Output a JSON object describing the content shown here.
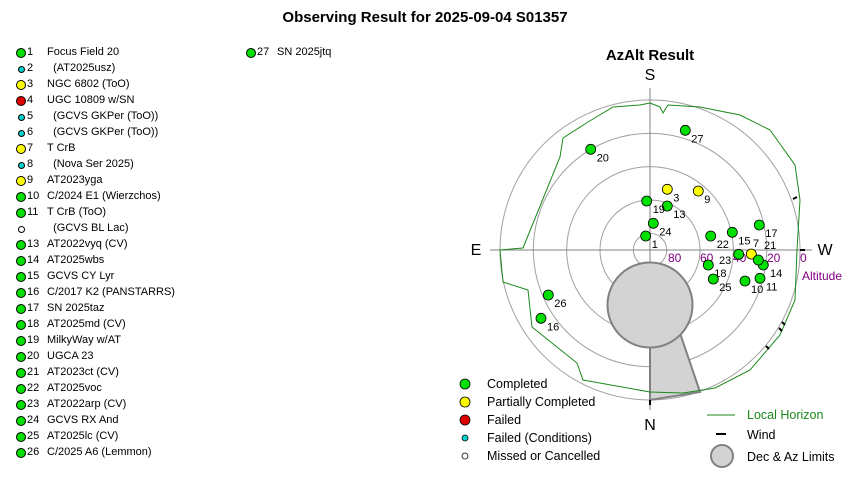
{
  "title": "Observing Result for 2025-09-04 S01357",
  "chart_title": "AzAlt Result",
  "colors": {
    "completed": "#00e000",
    "partial": "#ffff00",
    "failed": "#e00000",
    "failed_conditions": "#00d0d0",
    "missed": "#ffffff",
    "horizon": "#1a8a1a",
    "altitude_label": "#800080",
    "limits": "#d3d3d3"
  },
  "targets": [
    {
      "num": "1",
      "name": "Focus Field 20",
      "status": "completed"
    },
    {
      "num": "2",
      "name": "  (AT2025usz)",
      "status": "failed_conditions"
    },
    {
      "num": "3",
      "name": "NGC 6802 (ToO)",
      "status": "partial"
    },
    {
      "num": "4",
      "name": "UGC 10809 w/SN",
      "status": "failed"
    },
    {
      "num": "5",
      "name": "  (GCVS GKPer (ToO))",
      "status": "failed_conditions"
    },
    {
      "num": "6",
      "name": "  (GCVS GKPer (ToO))",
      "status": "failed_conditions"
    },
    {
      "num": "7",
      "name": "T CrB",
      "status": "partial"
    },
    {
      "num": "8",
      "name": "  (Nova Ser 2025)",
      "status": "failed_conditions"
    },
    {
      "num": "9",
      "name": "AT2023yga",
      "status": "partial"
    },
    {
      "num": "10",
      "name": "C/2024 E1 (Wierzchos)",
      "status": "completed"
    },
    {
      "num": "11",
      "name": "T CrB (ToO)",
      "status": "completed"
    },
    {
      "num": "",
      "name": "  (GCVS BL Lac)",
      "status": "missed"
    },
    {
      "num": "13",
      "name": "AT2022vyq (CV)",
      "status": "completed"
    },
    {
      "num": "14",
      "name": "AT2025wbs",
      "status": "completed"
    },
    {
      "num": "15",
      "name": "GCVS CY Lyr",
      "status": "completed"
    },
    {
      "num": "16",
      "name": "C/2017 K2 (PANSTARRS)",
      "status": "completed"
    },
    {
      "num": "17",
      "name": "SN 2025taz",
      "status": "completed"
    },
    {
      "num": "18",
      "name": "AT2025md (CV)",
      "status": "completed"
    },
    {
      "num": "19",
      "name": "MilkyWay w/AT",
      "status": "completed"
    },
    {
      "num": "20",
      "name": "UGCA 23",
      "status": "completed"
    },
    {
      "num": "21",
      "name": "AT2023ct (CV)",
      "status": "completed"
    },
    {
      "num": "22",
      "name": "AT2025voc",
      "status": "completed"
    },
    {
      "num": "23",
      "name": "AT2022arp (CV)",
      "status": "completed"
    },
    {
      "num": "24",
      "name": "GCVS RX And",
      "status": "completed"
    },
    {
      "num": "25",
      "name": "AT2025lc (CV)",
      "status": "completed"
    },
    {
      "num": "26",
      "name": "C/2025 A6 (Lemmon)",
      "status": "completed"
    },
    {
      "num": "27",
      "name": "SN 2025jtq",
      "status": "completed"
    }
  ],
  "compass": {
    "S": "S",
    "E": "E",
    "W": "W",
    "N": "N"
  },
  "altitude_ticks": [
    "80",
    "60",
    "40",
    "20",
    "0"
  ],
  "altitude_label": "Altitude",
  "legend": {
    "completed": "Completed",
    "partial": "Partially Completed",
    "failed": "Failed",
    "failed_conditions": "Failed (Conditions)",
    "missed": "Missed or Cancelled",
    "horizon": "Local Horizon",
    "wind": "Wind",
    "limits": "Dec & Az Limits"
  }
}
